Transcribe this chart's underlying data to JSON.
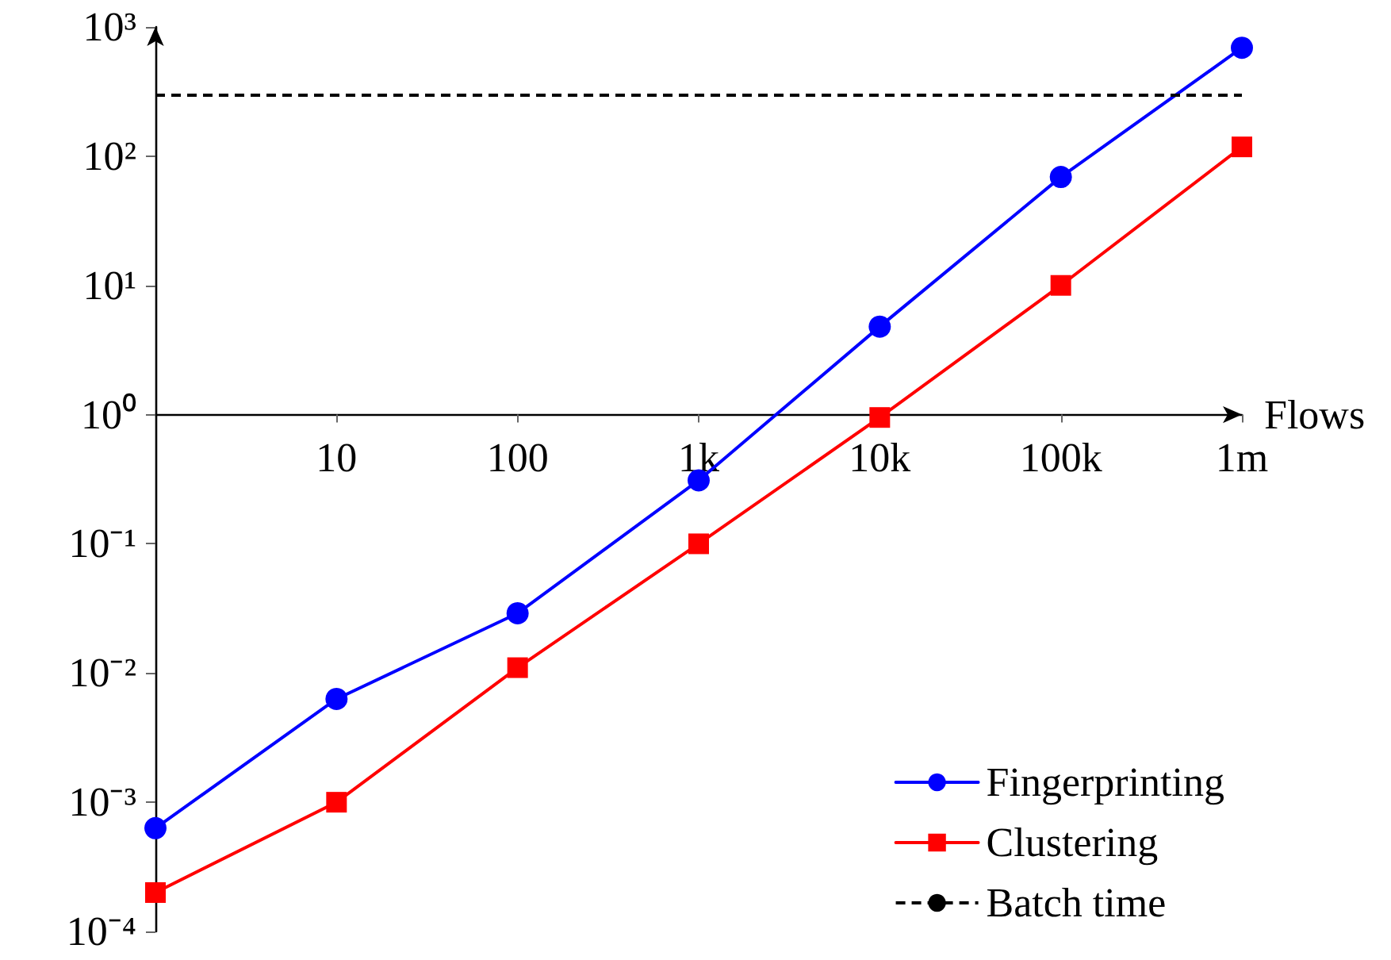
{
  "chart_data": {
    "type": "line",
    "xlabel": "Flows",
    "log": "xy",
    "grid": false,
    "legend": "bottom right",
    "xlim": [
      1,
      1000000
    ],
    "xticks": [
      10,
      100,
      {
        "value": 1000,
        "label": "1k"
      },
      {
        "value": 10000,
        "label": "10k"
      },
      {
        "value": 100000,
        "label": "100k"
      },
      {
        "value": 1000000,
        "label": "1m"
      }
    ],
    "ylim": [
      0.0001,
      1000
    ],
    "yticks": [
      {
        "value": 0.0001,
        "label": "10⁻⁴"
      },
      {
        "value": 0.001,
        "label": "10⁻³"
      },
      {
        "value": 0.01,
        "label": "10⁻²"
      },
      {
        "value": 0.1,
        "label": "10⁻¹"
      },
      {
        "value": 1,
        "label": "10⁰"
      },
      {
        "value": 10,
        "label": "10¹"
      },
      {
        "value": 100,
        "label": "10²"
      },
      {
        "value": 1000,
        "label": "10³"
      }
    ],
    "x": [
      1,
      10,
      100,
      1000,
      10000,
      100000,
      1000000
    ],
    "series": [
      {
        "name": "Fingerprinting",
        "color": "#0000ff",
        "marker": "circle",
        "values": [
          0.00063,
          0.0063,
          0.029,
          0.31,
          4.8,
          69,
          690
        ]
      },
      {
        "name": "Clustering",
        "color": "#ff0000",
        "marker": "square",
        "values": [
          0.0002,
          0.001,
          0.011,
          0.1,
          0.95,
          10,
          118
        ]
      }
    ],
    "ref_lines": [
      {
        "axis": "y",
        "value": 300,
        "label": "Batch time",
        "color": "#000000",
        "line_style": "dashed"
      }
    ]
  }
}
